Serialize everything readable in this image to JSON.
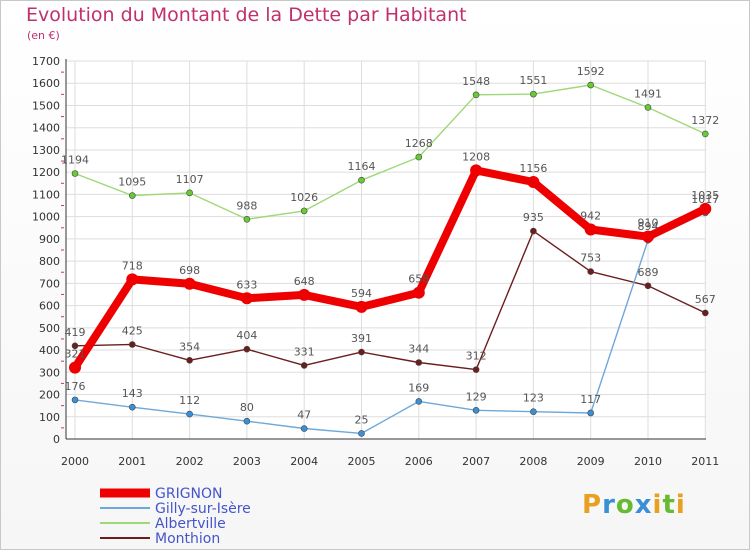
{
  "chart_data": {
    "type": "line",
    "title": "Evolution du Montant de la Dette par Habitant",
    "unit_label": "(en €)",
    "x": [
      "2000",
      "2001",
      "2002",
      "2003",
      "2004",
      "2005",
      "2006",
      "2007",
      "2008",
      "2009",
      "2010",
      "2011"
    ],
    "ylim": [
      0,
      1700
    ],
    "yticks": [
      "0",
      "100",
      "200",
      "300",
      "400",
      "500",
      "600",
      "700",
      "800",
      "900",
      "1000",
      "1100",
      "1200",
      "1300",
      "1400",
      "1500",
      "1600",
      "1700"
    ],
    "grid": true,
    "legend_position": "bottom-left",
    "series": [
      {
        "name": "Monthion",
        "color": "#6b1e1e",
        "point_color": "#6b1e1e",
        "values": [
          419,
          425,
          354,
          404,
          331,
          391,
          344,
          312,
          935,
          753,
          689,
          567
        ],
        "labels": [
          "419",
          "425",
          "354",
          "404",
          "331",
          "391",
          "344",
          "312",
          "935",
          "753",
          "689",
          "567"
        ]
      },
      {
        "name": "Gilly-sur-Isère",
        "color": "#6fa8d8",
        "point_color": "#3a8fd6",
        "values": [
          176,
          143,
          112,
          80,
          47,
          25,
          169,
          129,
          123,
          117,
          894,
          1017
        ],
        "labels": [
          "176",
          "143",
          "112",
          "80",
          "47",
          "25",
          "169",
          "129",
          "123",
          "117",
          "894",
          "1017"
        ]
      },
      {
        "name": "Albertville",
        "color": "#9fd878",
        "point_color": "#66cc33",
        "values": [
          1194,
          1095,
          1107,
          988,
          1026,
          1164,
          1268,
          1548,
          1551,
          1592,
          1491,
          1372
        ],
        "labels": [
          "1194",
          "1095",
          "1107",
          "988",
          "1026",
          "1164",
          "1268",
          "1548",
          "1551",
          "1592",
          "1491",
          "1372"
        ]
      },
      {
        "name": "GRIGNON",
        "color": "#ee0000",
        "point_color": "#ee0000",
        "values": [
          321,
          718,
          698,
          633,
          648,
          594,
          658,
          1208,
          1156,
          942,
          910,
          1035
        ],
        "labels": [
          "321",
          "718",
          "698",
          "633",
          "648",
          "594",
          "658",
          "1208",
          "1156",
          "942",
          "910",
          "1035"
        ]
      }
    ]
  },
  "legend": [
    {
      "label": "GRIGNON",
      "color": "#ee0000",
      "text_color": "#4455cc",
      "width": 9
    },
    {
      "label": "Gilly-sur-Isère",
      "color": "#6fa8d8",
      "text_color": "#4455cc",
      "width": 2
    },
    {
      "label": "Albertville",
      "color": "#9fd878",
      "text_color": "#4455cc",
      "width": 2
    },
    {
      "label": "Monthion",
      "color": "#6b1e1e",
      "text_color": "#4455cc",
      "width": 2
    }
  ],
  "brand": {
    "letters": [
      "P",
      "r",
      "o",
      "x",
      "i",
      "t",
      "i"
    ],
    "colors": [
      "#e8a020",
      "#3a8fd6",
      "#66bb33",
      "#3a8fd6",
      "#e8a020",
      "#66bb33",
      "#e8a020"
    ]
  }
}
